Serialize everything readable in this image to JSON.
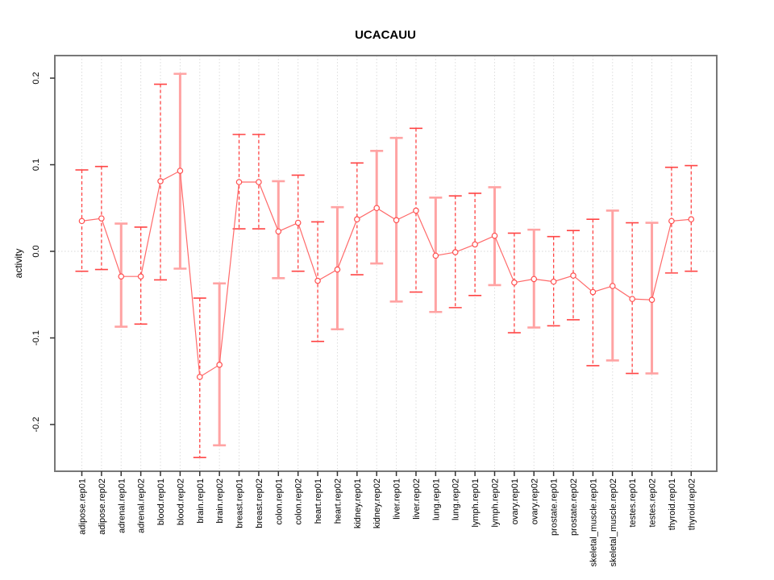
{
  "title": "UCACAUU",
  "colors": {
    "point_stroke": "#ff5050",
    "connect_line": "#ff6a6a",
    "errorbar_dashed": "#ff4444",
    "errorbar_solid": "#ffa3a3",
    "grid": "#dcdcdc",
    "zero_line": "#d8d8d8",
    "axis_box": "#777777",
    "tick": "#333333"
  },
  "chart_data": {
    "type": "scatter",
    "subtype": "points-with-error-bars-connected-by-line",
    "title": "UCACAUU",
    "xlabel": "",
    "ylabel": "activity",
    "ylim": [
      -0.255,
      0.225
    ],
    "yticks": [
      -0.2,
      -0.1,
      0.0,
      0.1,
      0.2
    ],
    "ytick_labels": [
      "-0.2",
      "-0.1",
      "0.0",
      "0.1",
      "0.2"
    ],
    "grid": "vertical dotted gridline at every category; dotted horizontal line at y=0",
    "legend": "none",
    "categories": [
      "adipose.rep01",
      "adipose.rep02",
      "adrenal.rep01",
      "adrenal.rep02",
      "blood.rep01",
      "blood.rep02",
      "brain.rep01",
      "brain.rep02",
      "breast.rep01",
      "breast.rep02",
      "colon.rep01",
      "colon.rep02",
      "heart.rep01",
      "heart.rep02",
      "kidney.rep01",
      "kidney.rep02",
      "liver.rep01",
      "liver.rep02",
      "lung.rep01",
      "lung.rep02",
      "lymph.rep01",
      "lymph.rep02",
      "ovary.rep01",
      "ovary.rep02",
      "prostate.rep01",
      "prostate.rep02",
      "skeletal_muscle.rep01",
      "skeletal_muscle.rep02",
      "testes.rep01",
      "testes.rep02",
      "thyroid.rep01",
      "thyroid.rep02"
    ],
    "values": [
      0.035,
      0.038,
      -0.029,
      -0.029,
      0.081,
      0.093,
      -0.145,
      -0.131,
      0.08,
      0.08,
      0.023,
      0.033,
      -0.034,
      -0.021,
      0.037,
      0.05,
      0.036,
      0.047,
      -0.005,
      -0.001,
      0.008,
      0.018,
      -0.036,
      -0.032,
      -0.035,
      -0.028,
      -0.047,
      -0.04,
      -0.055,
      -0.056,
      0.035,
      0.037
    ],
    "error_low": [
      -0.023,
      -0.021,
      -0.087,
      -0.084,
      -0.033,
      -0.02,
      -0.238,
      -0.224,
      0.026,
      0.026,
      -0.031,
      -0.023,
      -0.104,
      -0.09,
      -0.027,
      -0.014,
      -0.058,
      -0.047,
      -0.07,
      -0.065,
      -0.051,
      -0.039,
      -0.094,
      -0.088,
      -0.086,
      -0.079,
      -0.132,
      -0.126,
      -0.141,
      -0.141,
      -0.025,
      -0.023
    ],
    "error_high": [
      0.094,
      0.098,
      0.032,
      0.028,
      0.193,
      0.205,
      -0.054,
      -0.037,
      0.135,
      0.135,
      0.081,
      0.088,
      0.034,
      0.051,
      0.102,
      0.116,
      0.131,
      0.142,
      0.062,
      0.064,
      0.067,
      0.074,
      0.021,
      0.025,
      0.017,
      0.024,
      0.037,
      0.047,
      0.033,
      0.033,
      0.097,
      0.099
    ],
    "bar_styles": [
      "dashed",
      "dashed",
      "solid",
      "dashed",
      "dashed",
      "solid",
      "dashed",
      "solid",
      "dashed",
      "dashed",
      "solid",
      "dashed",
      "dashed",
      "solid",
      "dashed",
      "solid",
      "solid",
      "dashed",
      "solid",
      "dashed",
      "dashed",
      "solid",
      "dashed",
      "solid",
      "dashed",
      "dashed",
      "dashed",
      "solid",
      "dashed",
      "solid",
      "dashed",
      "dashed"
    ]
  }
}
